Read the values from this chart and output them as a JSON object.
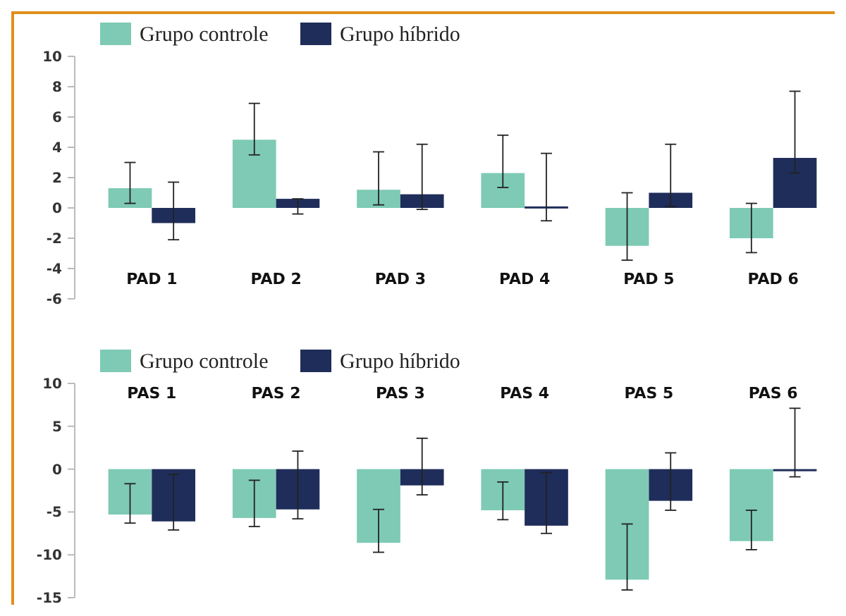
{
  "chart_data": [
    {
      "type": "bar",
      "categories": [
        "PAD 1",
        "PAD 2",
        "PAD 3",
        "PAD 4",
        "PAD 5",
        "PAD 6"
      ],
      "ylim": [
        -6,
        10
      ],
      "yticks": [
        -6,
        -4,
        -2,
        0,
        2,
        4,
        6,
        8,
        10
      ],
      "legend": "top left",
      "grid": false,
      "series": [
        {
          "name": "Grupo controle",
          "color": "#7ecab4",
          "values": [
            1.3,
            4.5,
            1.2,
            2.3,
            -2.5,
            -2.0
          ],
          "errors": [
            [
              0.3,
              3.0
            ],
            [
              3.5,
              6.9
            ],
            [
              0.2,
              3.7
            ],
            [
              1.35,
              4.8
            ],
            [
              -3.45,
              1.0
            ],
            [
              -2.95,
              0.3
            ]
          ]
        },
        {
          "name": "Grupo híbrido",
          "color": "#1f2d5a",
          "values": [
            -1.0,
            0.6,
            0.9,
            0.1,
            1.0,
            3.3
          ],
          "errors": [
            [
              -2.1,
              1.7
            ],
            [
              -0.4,
              0.6
            ],
            [
              -0.1,
              4.2
            ],
            [
              -0.85,
              3.6
            ],
            [
              0.1,
              4.2
            ],
            [
              2.3,
              7.7
            ]
          ]
        }
      ]
    },
    {
      "type": "bar",
      "categories": [
        "PAS 1",
        "PAS 2",
        "PAS 3",
        "PAS 4",
        "PAS 5",
        "PAS 6"
      ],
      "ylim": [
        -15,
        10
      ],
      "yticks": [
        -15,
        -10,
        -5,
        0,
        5,
        10
      ],
      "legend": "top left",
      "grid": false,
      "series": [
        {
          "name": "Grupo controle",
          "color": "#7ecab4",
          "values": [
            -5.3,
            -5.7,
            -8.6,
            -4.8,
            -12.9,
            -8.4
          ],
          "errors": [
            [
              -6.3,
              -1.7
            ],
            [
              -6.7,
              -1.3
            ],
            [
              -9.7,
              -4.7
            ],
            [
              -5.9,
              -1.5
            ],
            [
              -14.1,
              -6.4
            ],
            [
              -9.4,
              -4.8
            ]
          ]
        },
        {
          "name": "Grupo híbrido",
          "color": "#1f2d5a",
          "values": [
            -6.1,
            -4.7,
            -1.9,
            -6.6,
            -3.7,
            0
          ],
          "errors": [
            [
              -7.1,
              -0.6
            ],
            [
              -5.8,
              2.1
            ],
            [
              -3.0,
              3.6
            ],
            [
              -7.5,
              -0.4
            ],
            [
              -4.8,
              1.9
            ],
            [
              -0.9,
              7.1
            ]
          ]
        }
      ]
    }
  ]
}
